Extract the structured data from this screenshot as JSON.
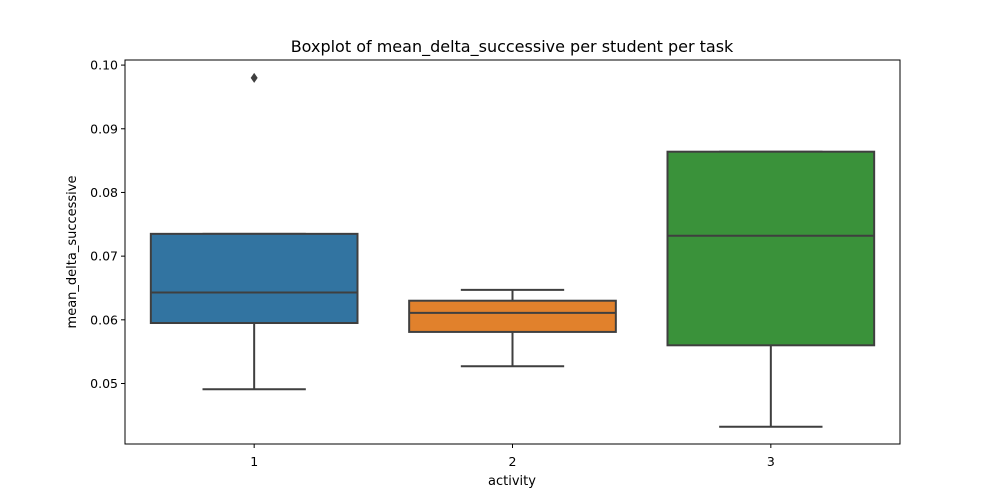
{
  "chart_data": {
    "type": "boxplot",
    "title": "Boxplot of mean_delta_successive per student per task",
    "xlabel": "activity",
    "ylabel": "mean_delta_successive",
    "categories": [
      "1",
      "2",
      "3"
    ],
    "yticks": [
      "0.05",
      "0.06",
      "0.07",
      "0.08",
      "0.09",
      "0.10"
    ],
    "ylim": [
      0.0405,
      0.1008
    ],
    "grid": false,
    "boxes": [
      {
        "category": "1",
        "whisker_low": 0.0491,
        "q1": 0.0595,
        "median": 0.0643,
        "q3": 0.0735,
        "whisker_high": 0.0735,
        "outliers": [
          0.098
        ],
        "color": "#3274a1"
      },
      {
        "category": "2",
        "whisker_low": 0.0527,
        "q1": 0.0581,
        "median": 0.0611,
        "q3": 0.063,
        "whisker_high": 0.0647,
        "outliers": [],
        "color": "#e1812c"
      },
      {
        "category": "3",
        "whisker_low": 0.0432,
        "q1": 0.056,
        "median": 0.0732,
        "q3": 0.0864,
        "whisker_high": 0.0864,
        "outliers": [],
        "color": "#3a923a"
      }
    ]
  }
}
